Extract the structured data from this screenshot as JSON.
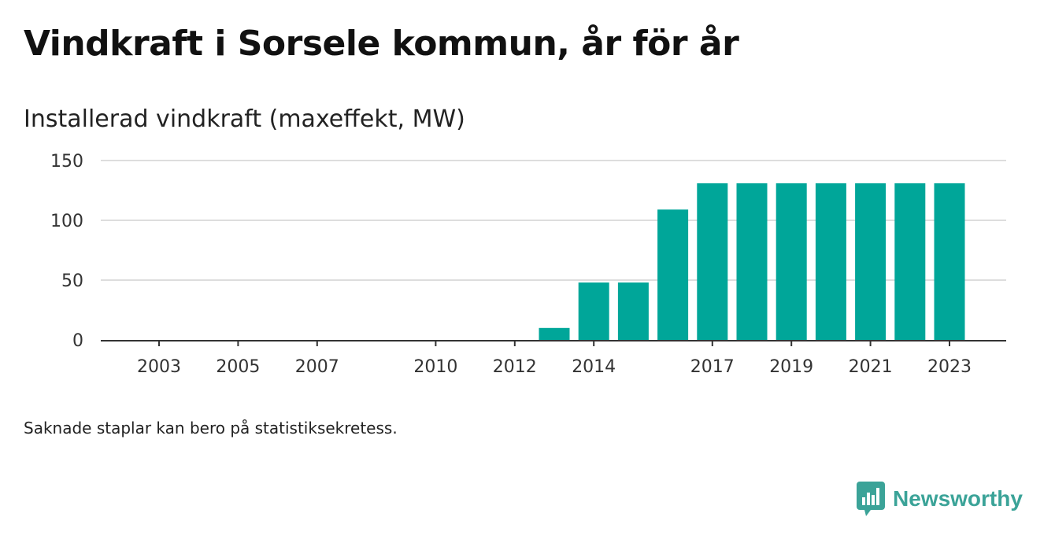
{
  "title": "Vindkraft i Sorsele kommun, år för år",
  "subtitle": "Installerad vindkraft (maxeffekt, MW)",
  "footnote": "Saknade staplar kan bero på statistiksekretess.",
  "brand": {
    "name": "Newsworthy",
    "icon": "newsworthy-logo-icon",
    "color": "#3ba398"
  },
  "colors": {
    "bar": "#00a699",
    "grid": "#dddddd",
    "axis": "#333333"
  },
  "chart_data": {
    "type": "bar",
    "title": "Vindkraft i Sorsele kommun, år för år",
    "ylabel": "Installerad vindkraft (maxeffekt, MW)",
    "xlabel": "",
    "x_domain": [
      2002,
      2024
    ],
    "ylim": [
      0,
      150
    ],
    "yticks": [
      0,
      50,
      100,
      150
    ],
    "xticks": [
      "2003",
      "2005",
      "2007",
      "2010",
      "2012",
      "2014",
      "2017",
      "2019",
      "2021",
      "2023"
    ],
    "grid": true,
    "categories": [
      "2013",
      "2014",
      "2015",
      "2016",
      "2017",
      "2018",
      "2019",
      "2020",
      "2021",
      "2022",
      "2023"
    ],
    "values": [
      10,
      48,
      48,
      109,
      131,
      131,
      131,
      131,
      131,
      131,
      131
    ]
  }
}
